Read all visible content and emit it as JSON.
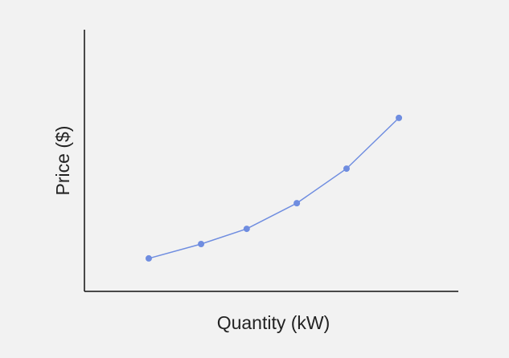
{
  "chart_data": {
    "type": "line",
    "x_label": "Quantity (kW)",
    "y_label": "Price ($)",
    "x": [
      17.2,
      31.2,
      43.4,
      56.8,
      70.1,
      84.1
    ],
    "series": [
      {
        "color": "#6f8de0",
        "values": [
          12.6,
          18.1,
          23.9,
          33.7,
          46.9,
          66.3
        ]
      }
    ],
    "xlim": [
      0,
      100
    ],
    "ylim": [
      0,
      100
    ],
    "grid": false
  }
}
